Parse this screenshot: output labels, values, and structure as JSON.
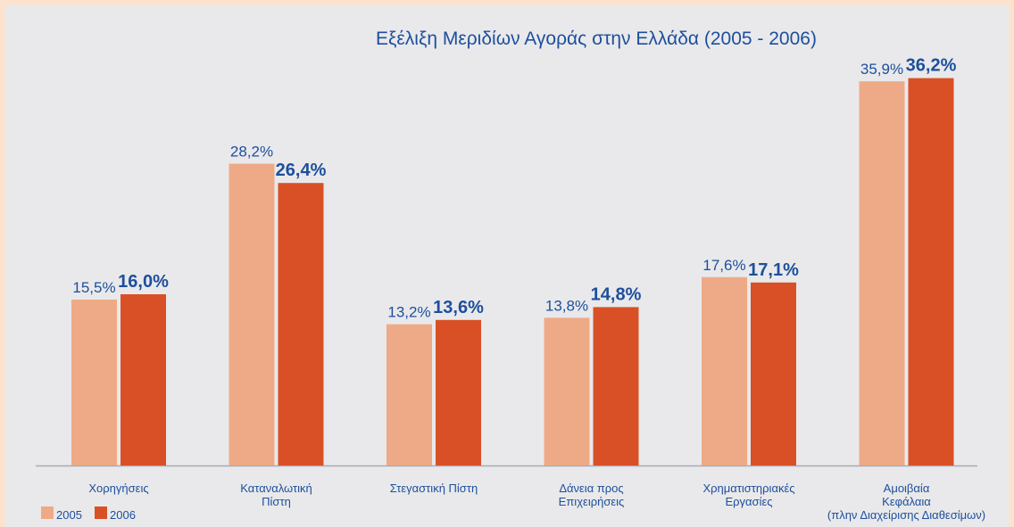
{
  "chart_data": {
    "type": "bar",
    "title": "Εξέλιξη Μεριδίων Αγοράς στην Ελλάδα (2005 - 2006)",
    "categories": [
      "Χορηγήσεις",
      "Καταναλωτική\nΠίστη",
      "Στεγαστική Πίστη",
      "Δάνεια προς\nΕπιχειρήσεις",
      "Χρηματιστηριακές\nΕργασίες",
      "Αμοιβαία\nΚεφάλαια\n(πλην Διαχείρισης Διαθεσίμων)"
    ],
    "series": [
      {
        "name": "2005",
        "color": "#eeaa86",
        "values": [
          15.5,
          28.2,
          13.2,
          13.8,
          17.6,
          35.9
        ],
        "value_labels": [
          "15,5%",
          "28,2%",
          "13,2%",
          "13,8%",
          "17,6%",
          "35,9%"
        ]
      },
      {
        "name": "2006",
        "color": "#d95027",
        "values": [
          16.0,
          26.4,
          13.6,
          14.8,
          17.1,
          36.2
        ],
        "value_labels": [
          "16,0%",
          "26,4%",
          "13,6%",
          "14,8%",
          "17,1%",
          "36,2%"
        ]
      }
    ],
    "legend": "bottom-left"
  }
}
